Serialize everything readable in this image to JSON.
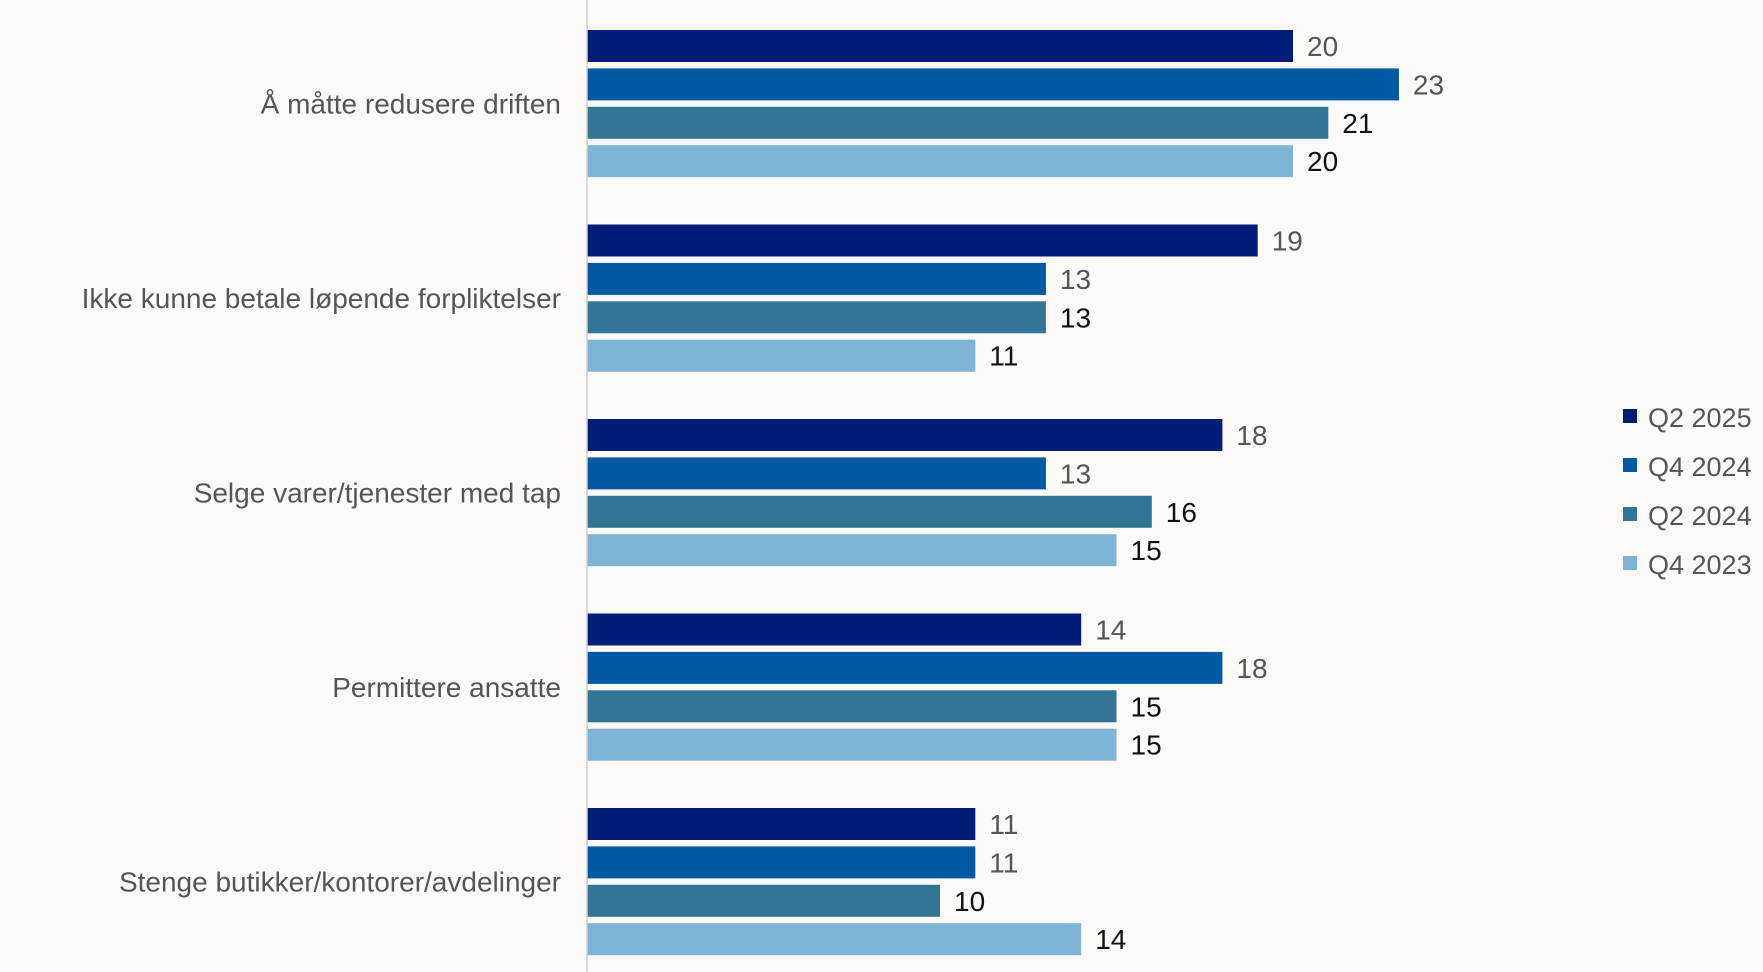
{
  "chart_data": {
    "type": "bar",
    "orientation": "horizontal",
    "categories": [
      "Å måtte redusere driften",
      "Ikke kunne betale løpende forpliktelser",
      "Selge varer/tjenester med tap",
      "Permittere ansatte",
      "Stenge butikker/kontorer/avdelinger"
    ],
    "series": [
      {
        "name": "Q2 2025",
        "color": "#001e78",
        "label_color": "#555555",
        "values": [
          20,
          19,
          18,
          14,
          11
        ]
      },
      {
        "name": "Q4 2024",
        "color": "#0059a3",
        "label_color": "#555555",
        "values": [
          23,
          13,
          13,
          18,
          11
        ]
      },
      {
        "name": "Q2 2024",
        "color": "#337595",
        "label_color": "#111111",
        "values": [
          21,
          13,
          16,
          15,
          10
        ]
      },
      {
        "name": "Q4 2023",
        "color": "#7fb4d6",
        "label_color": "#111111",
        "values": [
          20,
          11,
          15,
          15,
          14
        ]
      }
    ],
    "xlim": [
      0,
      28
    ],
    "grid": false,
    "legend_position": "right",
    "title": "",
    "xlabel": "",
    "ylabel": ""
  }
}
